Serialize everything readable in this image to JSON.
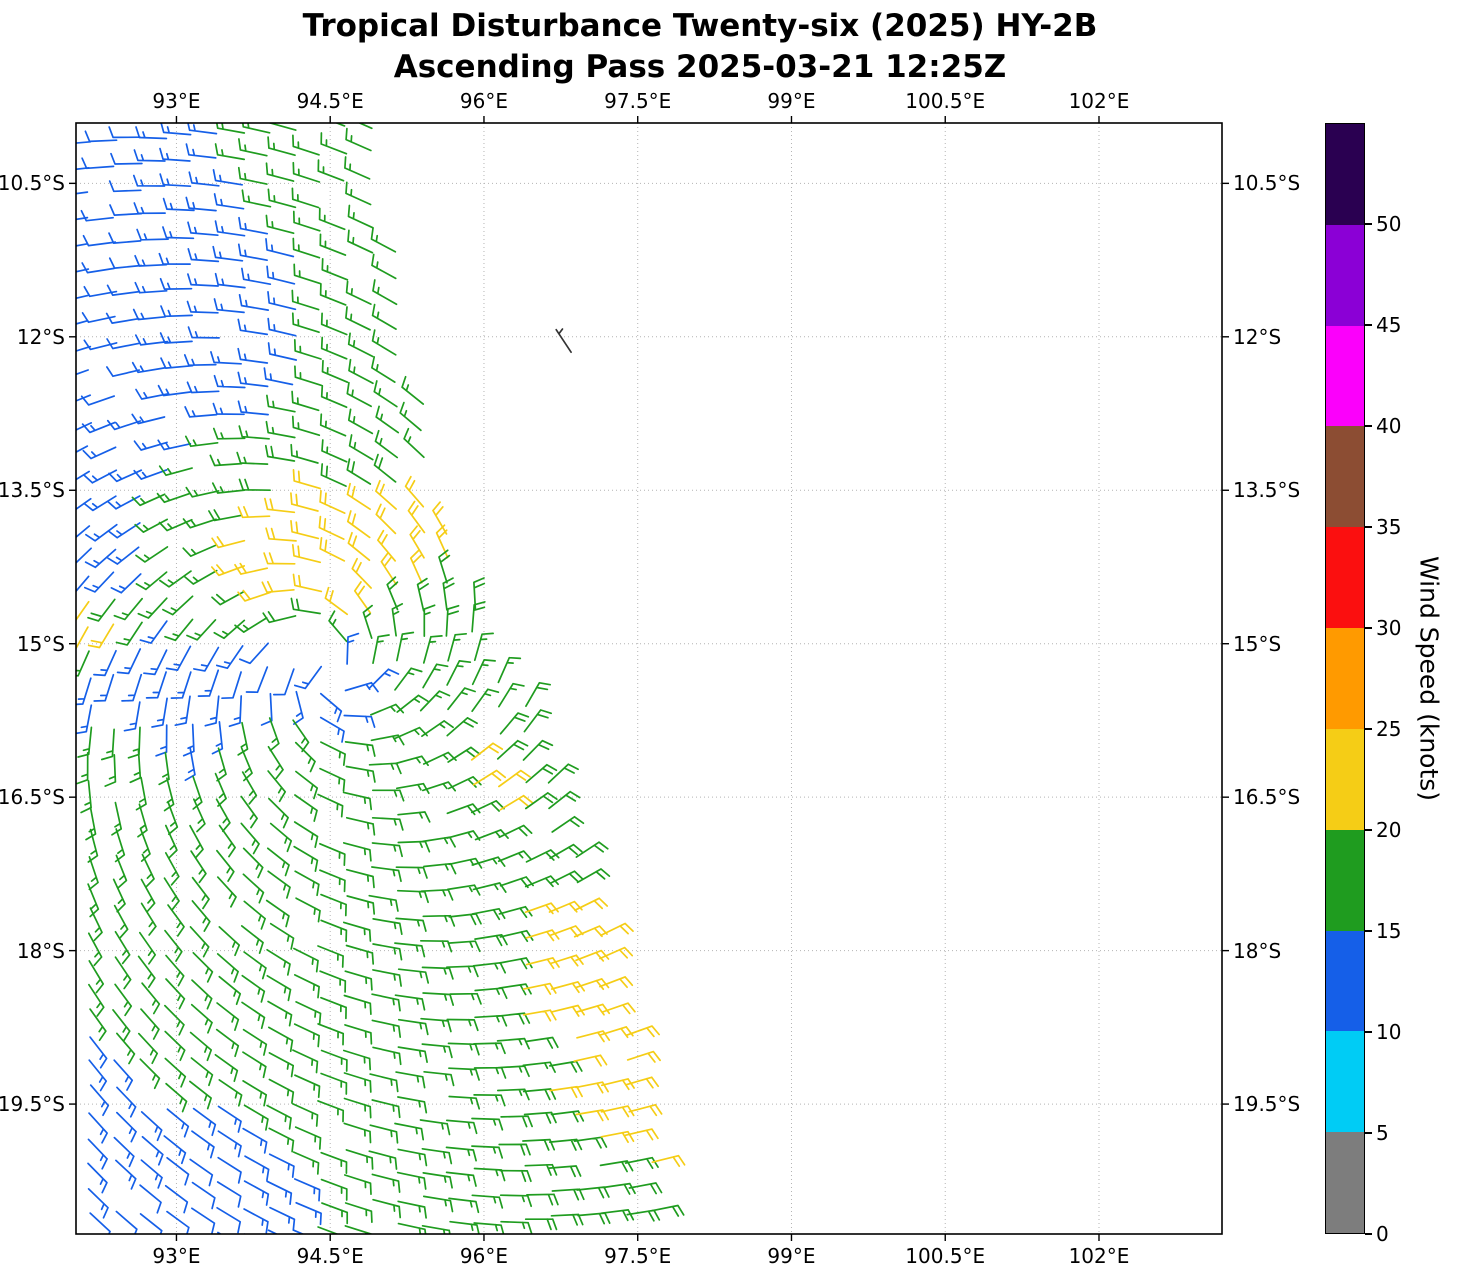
{
  "chart_data": {
    "type": "wind_barb_map",
    "title": "Tropical Disturbance Twenty-six (2025) HY-2B",
    "subtitle": "Ascending Pass 2025-03-21 12:25Z",
    "x_axis": {
      "tick_labels": [
        "93°E",
        "94.5°E",
        "96°E",
        "97.5°E",
        "99°E",
        "100.5°E",
        "102°E"
      ],
      "tick_values": [
        93,
        94.5,
        96,
        97.5,
        99,
        100.5,
        102
      ],
      "range_deg_east": [
        92.02,
        103.2
      ],
      "labels_shown": "top and bottom"
    },
    "y_axis": {
      "tick_labels": [
        "10.5°S",
        "12°S",
        "13.5°S",
        "15°S",
        "16.5°S",
        "18°S",
        "19.5°S"
      ],
      "tick_values": [
        -10.5,
        -12,
        -13.5,
        -15,
        -16.5,
        -18,
        -19.5
      ],
      "range_deg": [
        -20.77,
        -9.91
      ],
      "labels_shown": "left and right"
    },
    "grid": {
      "visible": true,
      "style": "dotted",
      "color": "#b4b4b4"
    },
    "colorbar": {
      "label": "Wind Speed (knots)",
      "vmin": 0,
      "vmax": 55,
      "tick_labels": [
        "0",
        "5",
        "10",
        "15",
        "20",
        "25",
        "30",
        "35",
        "40",
        "45",
        "50"
      ],
      "tick_values": [
        0,
        5,
        10,
        15,
        20,
        25,
        30,
        35,
        40,
        45,
        50
      ],
      "segments": [
        {
          "range": [
            0,
            5
          ],
          "color": "#7d7d7d"
        },
        {
          "range": [
            5,
            10
          ],
          "color": "#00ccf5"
        },
        {
          "range": [
            10,
            15
          ],
          "color": "#155fe8"
        },
        {
          "range": [
            15,
            20
          ],
          "color": "#1f9c1f"
        },
        {
          "range": [
            20,
            25
          ],
          "color": "#f5cd16"
        },
        {
          "range": [
            25,
            30
          ],
          "color": "#ff9a00"
        },
        {
          "range": [
            30,
            35
          ],
          "color": "#fb0f0f"
        },
        {
          "range": [
            35,
            40
          ],
          "color": "#8c4d33"
        },
        {
          "range": [
            40,
            45
          ],
          "color": "#fb00fb"
        },
        {
          "range": [
            45,
            50
          ],
          "color": "#8b00d6"
        },
        {
          "range": [
            50,
            55
          ],
          "color": "#2a0051"
        }
      ]
    },
    "wind_field": {
      "units": "knots",
      "barb_convention": {
        "half_barb_kt": 5,
        "full_barb_kt": 10,
        "rounded_to_nearest_kt": 5,
        "hemisphere": "south"
      },
      "observed_speed_categories_kt": [
        [
          10,
          15
        ],
        [
          15,
          20
        ],
        [
          20,
          25
        ]
      ],
      "grid_spacing_deg": 0.25,
      "lat_start": -9.95,
      "lat_end": -20.7,
      "lon_start": 92.15,
      "row_tilt_deg_per_deg": 0.05,
      "jitter_deg": 0.02,
      "dropout_fraction": 0.05,
      "east_boundary_lat_lon": [
        [
          -20.7,
          97.78
        ],
        [
          -19.5,
          97.55
        ],
        [
          -19.0,
          97.45
        ],
        [
          -18.0,
          97.2
        ],
        [
          -17.0,
          96.92
        ],
        [
          -16.5,
          96.7
        ],
        [
          -16.0,
          96.55
        ],
        [
          -15.5,
          96.35
        ],
        [
          -15.0,
          96.0
        ],
        [
          -14.5,
          95.85
        ],
        [
          -14.0,
          95.72
        ],
        [
          -13.5,
          95.6
        ],
        [
          -13.0,
          95.45
        ],
        [
          -12.0,
          95.3
        ],
        [
          -11.0,
          95.12
        ],
        [
          -9.95,
          95.05
        ]
      ],
      "circulation": {
        "center_lon": 94.5,
        "center_lat": -15.25,
        "rotation": "clockwise",
        "inflow_factor": 0.35
      },
      "speed_anchors_lon_lat_kt": [
        [
          92.4,
          -10.2,
          12
        ],
        [
          93.1,
          -10.4,
          13
        ],
        [
          93.9,
          -10.1,
          16
        ],
        [
          94.7,
          -10.2,
          17
        ],
        [
          92.3,
          -11.2,
          12
        ],
        [
          93.3,
          -11.3,
          13
        ],
        [
          94.3,
          -11.3,
          15
        ],
        [
          95.0,
          -11.0,
          16
        ],
        [
          92.3,
          -12.2,
          12
        ],
        [
          93.5,
          -12.3,
          13
        ],
        [
          94.5,
          -12.4,
          15
        ],
        [
          95.2,
          -12.3,
          16
        ],
        [
          92.3,
          -13.2,
          13
        ],
        [
          93.4,
          -13.3,
          15
        ],
        [
          94.6,
          -13.1,
          17
        ],
        [
          95.4,
          -13.0,
          16
        ],
        [
          92.4,
          -14.2,
          13
        ],
        [
          93.3,
          -14.0,
          17
        ],
        [
          93.9,
          -14.1,
          21
        ],
        [
          94.4,
          -13.8,
          22
        ],
        [
          95.1,
          -13.9,
          22
        ],
        [
          95.6,
          -14.1,
          22
        ],
        [
          94.7,
          -14.35,
          22
        ],
        [
          95.9,
          -14.5,
          18
        ],
        [
          92.15,
          -14.75,
          21
        ],
        [
          92.5,
          -15.3,
          13
        ],
        [
          93.0,
          -15.45,
          13
        ],
        [
          93.9,
          -15.3,
          12
        ],
        [
          94.6,
          -15.4,
          14
        ],
        [
          95.3,
          -15.2,
          17
        ],
        [
          96.0,
          -15.3,
          17
        ],
        [
          92.6,
          -16.0,
          16
        ],
        [
          94.0,
          -16.0,
          17
        ],
        [
          95.2,
          -16.1,
          17
        ],
        [
          96.3,
          -16.0,
          18
        ],
        [
          96.05,
          -16.35,
          21
        ],
        [
          93.0,
          -17.0,
          17
        ],
        [
          94.5,
          -17.0,
          17
        ],
        [
          95.8,
          -17.0,
          17
        ],
        [
          96.7,
          -17.1,
          18
        ],
        [
          96.8,
          -17.8,
          22
        ],
        [
          97.1,
          -18.3,
          22
        ],
        [
          97.3,
          -18.9,
          22
        ],
        [
          97.0,
          -19.4,
          22
        ],
        [
          96.6,
          -18.6,
          21
        ],
        [
          93.2,
          -18.0,
          17
        ],
        [
          94.6,
          -18.2,
          17
        ],
        [
          95.8,
          -18.4,
          17
        ],
        [
          96.2,
          -19.0,
          17
        ],
        [
          93.0,
          -19.0,
          16
        ],
        [
          94.3,
          -19.3,
          17
        ],
        [
          95.5,
          -19.6,
          17
        ],
        [
          96.4,
          -19.9,
          18
        ],
        [
          97.2,
          -20.3,
          20
        ],
        [
          92.3,
          -19.5,
          14
        ],
        [
          92.4,
          -19.9,
          13
        ],
        [
          93.2,
          -20.3,
          12
        ],
        [
          92.6,
          -20.6,
          12
        ],
        [
          93.8,
          -20.6,
          13
        ],
        [
          94.8,
          -20.5,
          16
        ],
        [
          95.8,
          -20.5,
          17
        ],
        [
          96.8,
          -20.6,
          18
        ]
      ],
      "isolated_obs": [
        {
          "lon": 96.85,
          "lat": -12.15,
          "speed_kt": 3,
          "color": "#333333"
        }
      ]
    }
  }
}
